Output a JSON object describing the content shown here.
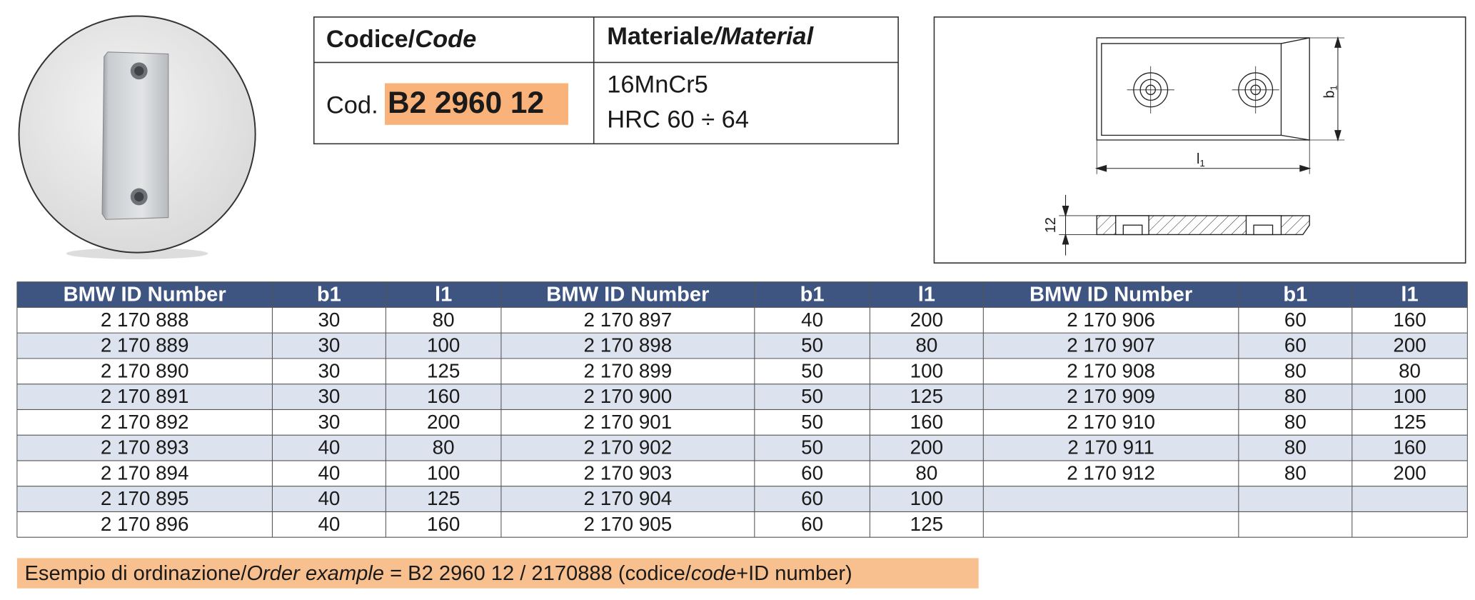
{
  "code_table": {
    "header": [
      {
        "main": "Codice/",
        "italic": "Code"
      },
      {
        "main": "Materiale",
        "italic": "/Material"
      }
    ],
    "code_prefix": "Cod.",
    "code": "B2 2960 12",
    "material": [
      "16MnCr5",
      "HRC 60 ÷ 64"
    ]
  },
  "drawing": {
    "b1": {
      "main": "b",
      "sub": "1"
    },
    "l1": {
      "main": "l",
      "sub": "1"
    },
    "thickness": "12"
  },
  "table": {
    "header": [
      "BMW ID Number",
      "b1",
      "l1",
      "BMW ID Number",
      "b1",
      "l1",
      "BMW ID Number",
      "b1",
      "l1"
    ],
    "rows": [
      [
        "2 170 888",
        "30",
        "80",
        "2 170 897",
        "40",
        "200",
        "2 170 906",
        "60",
        "160"
      ],
      [
        "2 170 889",
        "30",
        "100",
        "2 170 898",
        "50",
        "80",
        "2 170 907",
        "60",
        "200"
      ],
      [
        "2 170 890",
        "30",
        "125",
        "2 170 899",
        "50",
        "100",
        "2 170 908",
        "80",
        "80"
      ],
      [
        "2 170 891",
        "30",
        "160",
        "2 170 900",
        "50",
        "125",
        "2 170 909",
        "80",
        "100"
      ],
      [
        "2 170 892",
        "30",
        "200",
        "2 170 901",
        "50",
        "160",
        "2 170 910",
        "80",
        "125"
      ],
      [
        "2 170 893",
        "40",
        "80",
        "2 170 902",
        "50",
        "200",
        "2 170 911",
        "80",
        "160"
      ],
      [
        "2 170 894",
        "40",
        "100",
        "2 170 903",
        "60",
        "80",
        "2 170 912",
        "80",
        "200"
      ],
      [
        "2 170 895",
        "40",
        "125",
        "2 170 904",
        "60",
        "100"
      ],
      [
        "2 170 896",
        "40",
        "160",
        "2 170 905",
        "60",
        "125"
      ]
    ]
  },
  "order_example": [
    "Esempio di ordinazione/",
    "Order example",
    " = B2 2960 12 / 2170888 (codice/",
    "code",
    "+ID number)"
  ]
}
